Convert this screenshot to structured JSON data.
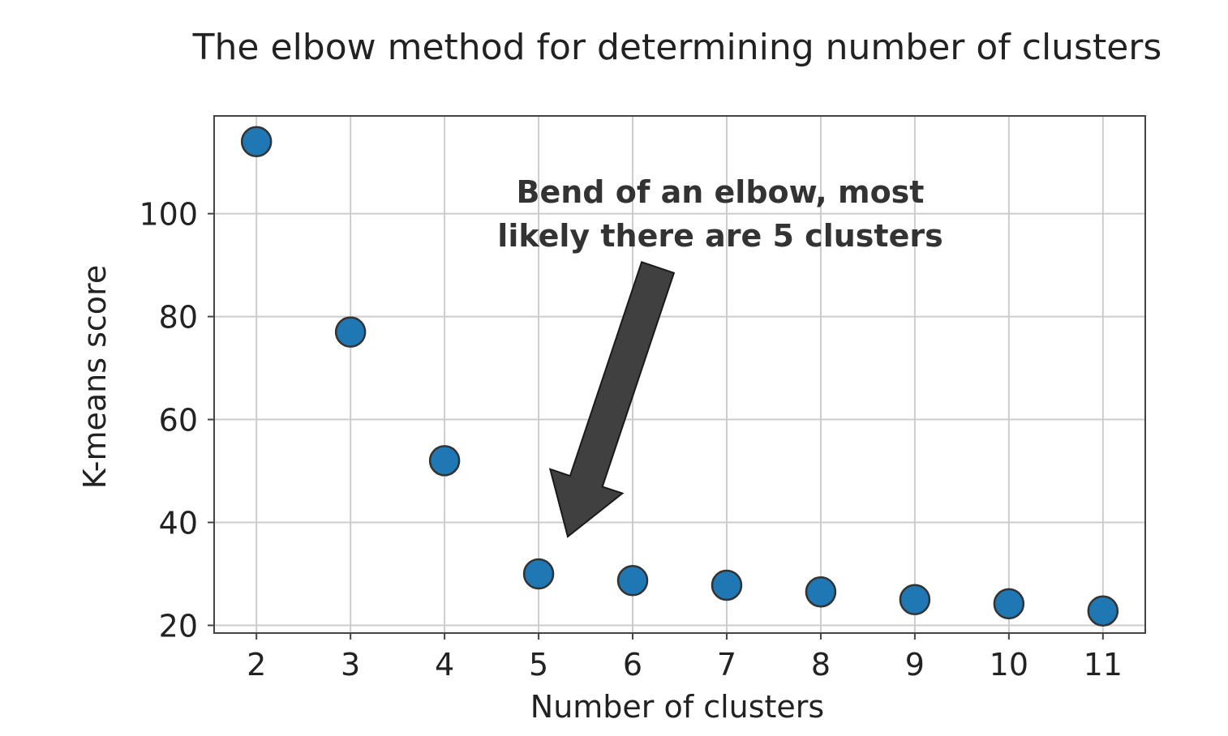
{
  "chart_data": {
    "type": "scatter",
    "title": "The elbow method for determining number of clusters",
    "xlabel": "Number of clusters",
    "ylabel": "K-means score",
    "x": [
      2,
      3,
      4,
      5,
      6,
      7,
      8,
      9,
      10,
      11
    ],
    "y": [
      114,
      77,
      52,
      30,
      28.7,
      27.8,
      26.5,
      25,
      24.2,
      22.8
    ],
    "xlim": [
      1.55,
      11.45
    ],
    "ylim": [
      18.5,
      119
    ],
    "xticks": [
      2,
      3,
      4,
      5,
      6,
      7,
      8,
      9,
      10,
      11
    ],
    "yticks": [
      20,
      40,
      60,
      80,
      100
    ],
    "grid": true,
    "marker_color": "#1f77b4",
    "marker_edge_color": "#333333",
    "annotation": {
      "lines": [
        "Bend of an elbow, most",
        "likely there are 5 clusters"
      ],
      "arrow_color": "#404040"
    }
  }
}
